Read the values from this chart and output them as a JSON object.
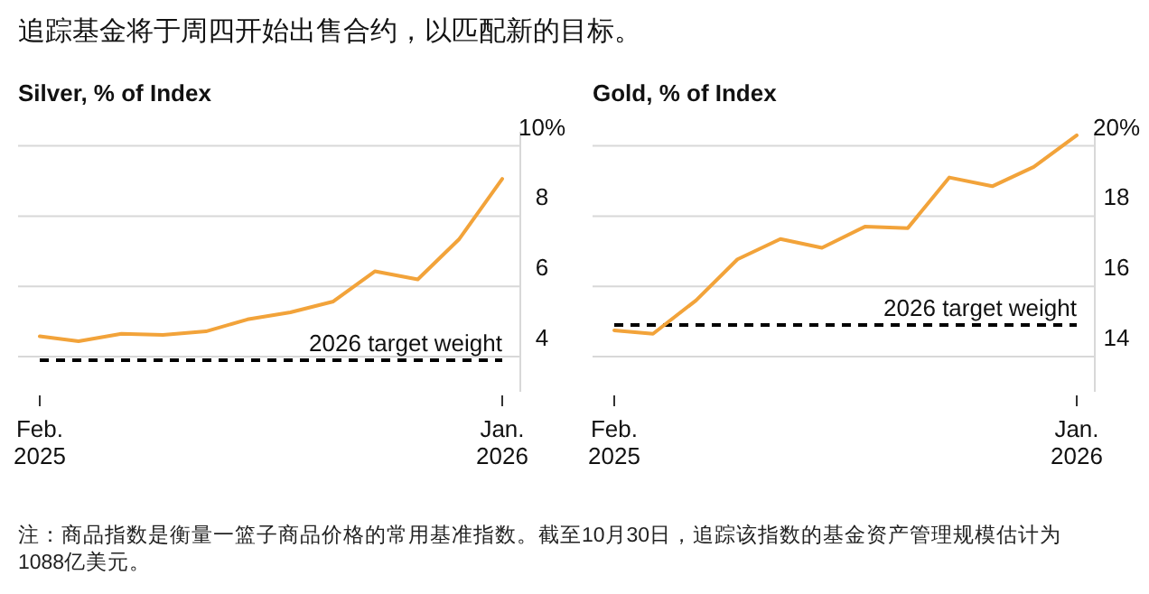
{
  "chart_data": [
    {
      "type": "line",
      "title": "追踪基金将于周四开始出售合约，以匹配新的目标。",
      "subtitle": "Silver, % of Index",
      "x": [
        "2025-02",
        "2025-03",
        "2025-04",
        "2025-05",
        "2025-06",
        "2025-07",
        "2025-08",
        "2025-09",
        "2025-10",
        "2025-11",
        "2025-12",
        "2026-01"
      ],
      "series": [
        {
          "color": "#f2a33a",
          "values": [
            4.58,
            4.44,
            4.65,
            4.62,
            4.72,
            5.06,
            5.26,
            5.57,
            6.43,
            6.2,
            7.35,
            9.06
          ]
        }
      ],
      "xlim": [
        "2025-02",
        "2026-01"
      ],
      "xticks": [
        {
          "value": "2025-02",
          "label": "Feb. 2025"
        },
        {
          "value": "2026-01",
          "label": "Jan. 2026"
        }
      ],
      "ylim": [
        3,
        10.4
      ],
      "yticks": [
        {
          "value": 4,
          "label": "4"
        },
        {
          "value": 6,
          "label": "6"
        },
        {
          "value": 8,
          "label": "8"
        },
        {
          "value": 10,
          "label": "10%"
        }
      ],
      "grid": "y",
      "marker": "none",
      "line_style": "solid",
      "ref_lines": [
        {
          "axis": "y",
          "value": 3.9,
          "label": "2026 target weight",
          "color": "#000000",
          "line_style": "dashed"
        }
      ],
      "annotations": [
        "注：商品指数是衡量一篮子商品价格的常用基准指数。截至10月30日，追踪该指数的基金资产管理规模估计为1088亿美元。"
      ]
    },
    {
      "type": "line",
      "subtitle": "Gold, % of Index",
      "x": [
        "2025-02",
        "2025-03",
        "2025-04",
        "2025-05",
        "2025-06",
        "2025-07",
        "2025-08",
        "2025-09",
        "2025-10",
        "2025-11",
        "2025-12",
        "2026-01"
      ],
      "series": [
        {
          "color": "#f2a33a",
          "values": [
            14.75,
            14.65,
            15.6,
            16.77,
            17.35,
            17.1,
            17.7,
            17.66,
            19.1,
            18.85,
            19.4,
            20.3
          ]
        }
      ],
      "xlim": [
        "2025-02",
        "2026-01"
      ],
      "xticks": [
        {
          "value": "2025-02",
          "label": "Feb. 2025"
        },
        {
          "value": "2026-01",
          "label": "Jan. 2026"
        }
      ],
      "ylim": [
        13,
        20.4
      ],
      "yticks": [
        {
          "value": 14,
          "label": "14"
        },
        {
          "value": 16,
          "label": "16"
        },
        {
          "value": 18,
          "label": "18"
        },
        {
          "value": 20,
          "label": "20%"
        }
      ],
      "grid": "y",
      "marker": "none",
      "line_style": "solid",
      "ref_lines": [
        {
          "axis": "y",
          "value": 14.9,
          "label": "2026 target weight",
          "color": "#000000",
          "line_style": "dashed"
        }
      ]
    }
  ]
}
